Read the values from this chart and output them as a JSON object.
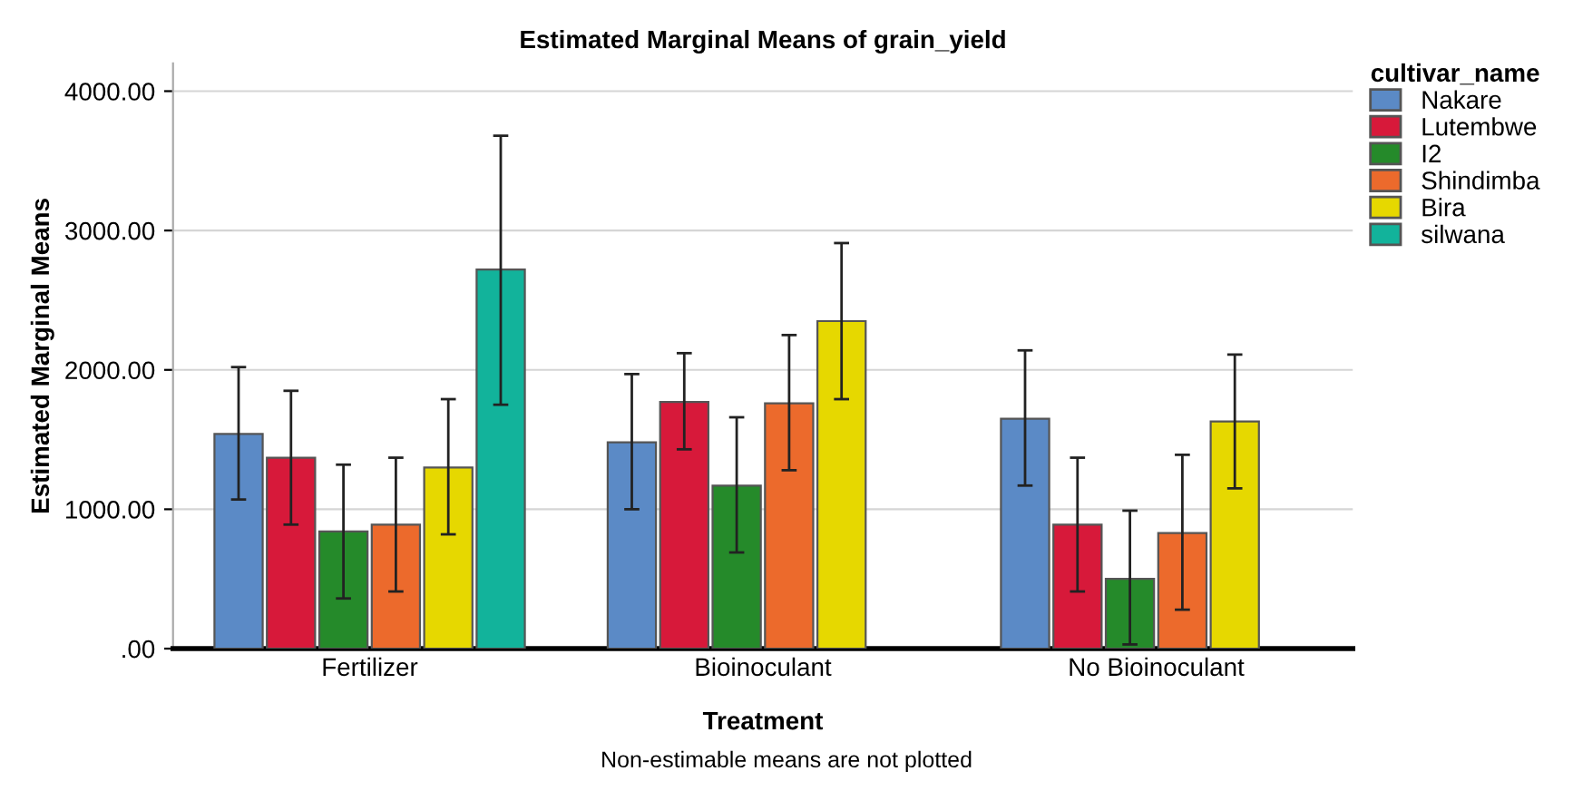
{
  "chart_data": {
    "type": "bar",
    "title": "Estimated Marginal Means of grain_yield",
    "xlabel": "Treatment",
    "ylabel": "Estimated Marginal Means",
    "legend_title": "cultivar_name",
    "categories": [
      "Fertilizer",
      "Bioinoculant",
      "No Bioinoculant"
    ],
    "series": [
      {
        "name": "Nakare",
        "color": "#5b8ac6",
        "values": [
          1540,
          1480,
          1650
        ],
        "errors": [
          [
            1070,
            2020
          ],
          [
            1000,
            1970
          ],
          [
            1170,
            2140
          ]
        ]
      },
      {
        "name": "Lutembwe",
        "color": "#d7193a",
        "values": [
          1370,
          1770,
          890
        ],
        "errors": [
          [
            890,
            1850
          ],
          [
            1430,
            2120
          ],
          [
            410,
            1370
          ]
        ]
      },
      {
        "name": "I2",
        "color": "#258a2a",
        "values": [
          840,
          1170,
          500
        ],
        "errors": [
          [
            360,
            1320
          ],
          [
            690,
            1660
          ],
          [
            30,
            990
          ]
        ]
      },
      {
        "name": "Shindimba",
        "color": "#ec6a2c",
        "values": [
          890,
          1760,
          830
        ],
        "errors": [
          [
            410,
            1370
          ],
          [
            1280,
            2250
          ],
          [
            280,
            1390
          ]
        ]
      },
      {
        "name": "Bira",
        "color": "#e6d800",
        "values": [
          1300,
          2350,
          1630
        ],
        "errors": [
          [
            820,
            1790
          ],
          [
            1790,
            2910
          ],
          [
            1150,
            2110
          ]
        ]
      },
      {
        "name": "silwana",
        "color": "#12b39b",
        "values": [
          2720,
          null,
          null
        ],
        "errors": [
          [
            1750,
            3680
          ],
          null,
          null
        ]
      }
    ],
    "ylim": [
      0,
      4200
    ],
    "yticks": [
      {
        "value": 0,
        "label": ".00"
      },
      {
        "value": 1000,
        "label": "1000.00"
      },
      {
        "value": 2000,
        "label": "2000.00"
      },
      {
        "value": 3000,
        "label": "3000.00"
      },
      {
        "value": 4000,
        "label": "4000.00"
      }
    ],
    "grid": "y",
    "legend": "top right",
    "annotations": [
      "Non-estimable means are not plotted"
    ]
  }
}
